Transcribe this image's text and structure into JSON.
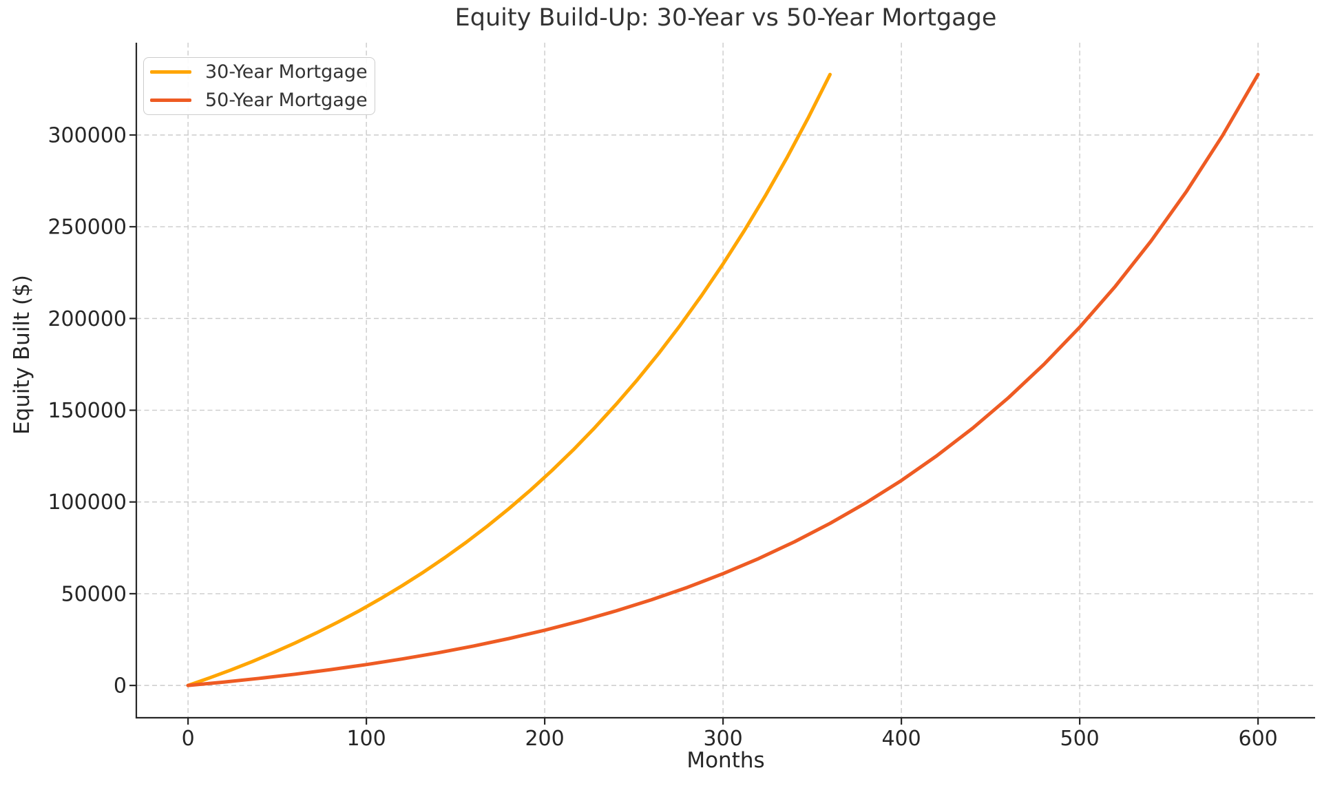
{
  "title": "Equity Build-Up: 30-Year vs 50-Year Mortgage",
  "chart_data": {
    "type": "line",
    "title": "Equity Build-Up: 30-Year vs 50-Year Mortgage",
    "xlabel": "Months",
    "ylabel": "Equity Built ($)",
    "x_ticks": [
      0,
      100,
      200,
      300,
      400,
      500,
      600
    ],
    "y_ticks": [
      0,
      50000,
      100000,
      150000,
      200000,
      250000,
      300000
    ],
    "xlim": [
      -29,
      632
    ],
    "ylim": [
      -17600,
      350300
    ],
    "grid": true,
    "grid_style": "dashed",
    "legend_position": "upper-left",
    "series": [
      {
        "name": "30-Year Mortgage",
        "color": "#FFA500",
        "months": [
          0,
          12,
          24,
          36,
          48,
          60,
          72,
          84,
          96,
          108,
          120,
          132,
          144,
          156,
          168,
          180,
          192,
          204,
          216,
          228,
          240,
          252,
          264,
          276,
          288,
          300,
          312,
          324,
          336,
          348,
          360
        ],
        "equity": [
          0,
          4089,
          8431,
          13040,
          17934,
          23129,
          28645,
          34501,
          40718,
          47318,
          54326,
          61767,
          69666,
          78053,
          86956,
          96407,
          106443,
          117097,
          128408,
          140417,
          153168,
          166706,
          181078,
          196336,
          212536,
          229730,
          247987,
          267371,
          287949,
          309797,
          333000
        ]
      },
      {
        "name": "50-Year Mortgage",
        "color": "#EE5B23",
        "months": [
          0,
          20,
          40,
          60,
          80,
          100,
          120,
          140,
          160,
          180,
          200,
          220,
          240,
          260,
          280,
          300,
          320,
          340,
          360,
          380,
          400,
          420,
          440,
          460,
          480,
          500,
          520,
          540,
          560,
          580,
          600
        ],
        "equity": [
          0,
          1845,
          3883,
          6135,
          8623,
          11372,
          14410,
          17766,
          21474,
          25572,
          30099,
          35105,
          40627,
          46733,
          53480,
          60935,
          69170,
          78268,
          88327,
          99441,
          111709,
          125262,
          140236,
          156781,
          175059,
          195254,
          217566,
          242220,
          269454,
          299543,
          333000
        ]
      }
    ]
  },
  "colors": {
    "grid": "#cbcbcb",
    "spine": "#262626",
    "tick_label": "#262626"
  }
}
